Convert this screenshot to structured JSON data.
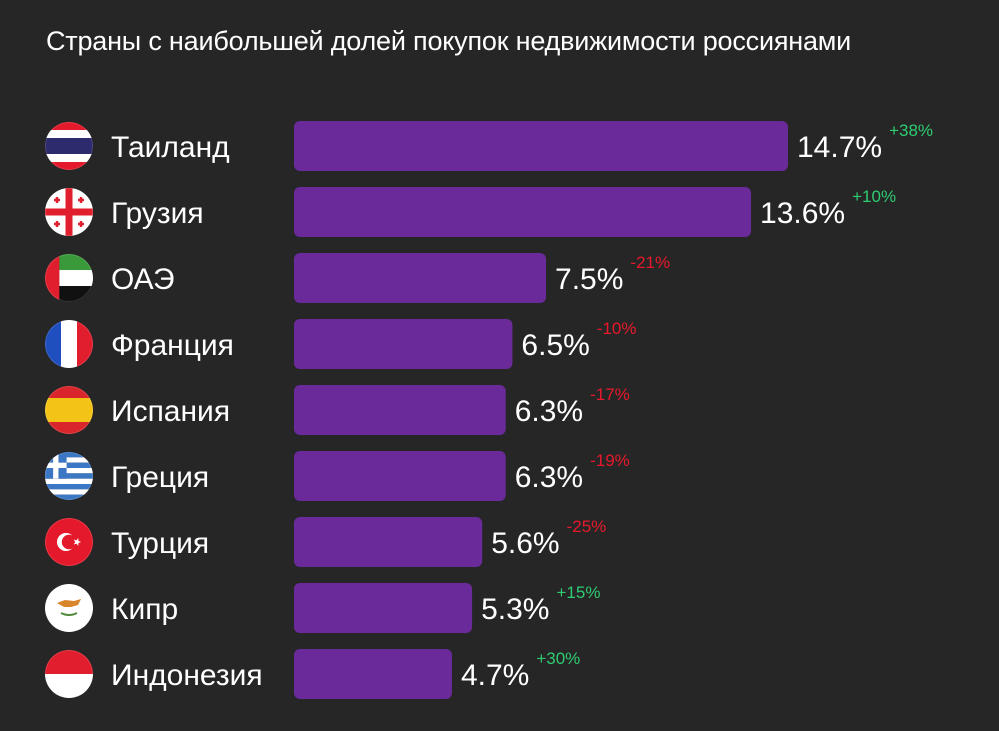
{
  "chart_data": {
    "type": "bar",
    "orientation": "horizontal",
    "title": "Страны с наибольшей долей покупок недвижимости россиянами",
    "categories": [
      "Таиланд",
      "Грузия",
      "ОАЭ",
      "Франция",
      "Испания",
      "Греция",
      "Турция",
      "Кипр",
      "Индонезия"
    ],
    "values": [
      14.7,
      13.6,
      7.5,
      6.5,
      6.3,
      6.3,
      5.6,
      5.3,
      4.7
    ],
    "value_labels": [
      "14.7%",
      "13.6%",
      "7.5%",
      "6.5%",
      "6.3%",
      "6.3%",
      "5.6%",
      "5.3%",
      "4.7%"
    ],
    "changes": [
      "+38%",
      "+10%",
      "-21%",
      "-10%",
      "-17%",
      "-19%",
      "-25%",
      "+15%",
      "+30%"
    ],
    "flag_icons": [
      "flag-thailand-icon",
      "flag-georgia-icon",
      "flag-uae-icon",
      "flag-france-icon",
      "flag-spain-icon",
      "flag-greece-icon",
      "flag-turkey-icon",
      "flag-cyprus-icon",
      "flag-indonesia-icon"
    ],
    "xlim": [
      0,
      14.7
    ],
    "grid": false,
    "legend": "none",
    "colors": {
      "bar": "#6b2a9a",
      "background": "#262626",
      "text": "#ffffff",
      "positive_change": "#2ecc71",
      "negative_change": "#e8192c"
    }
  }
}
